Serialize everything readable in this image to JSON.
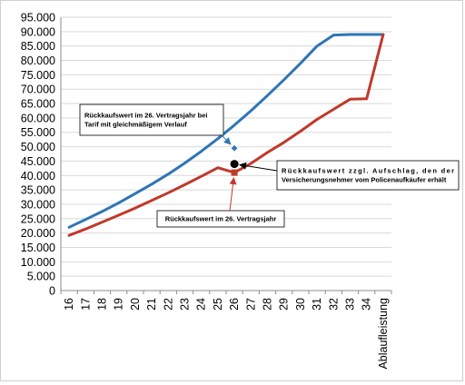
{
  "chart_data": {
    "type": "line",
    "categories": [
      "16",
      "17",
      "18",
      "19",
      "20",
      "21",
      "22",
      "23",
      "24",
      "25",
      "26",
      "27",
      "28",
      "29",
      "30",
      "31",
      "32",
      "33",
      "34",
      "Ablaufleistung"
    ],
    "yticks": [
      "0",
      "5.000",
      "10.000",
      "15.000",
      "20.000",
      "25.000",
      "30.000",
      "35.000",
      "40.000",
      "45.000",
      "50.000",
      "55.000",
      "60.000",
      "65.000",
      "70.000",
      "75.000",
      "80.000",
      "85.000",
      "90.000",
      "95.000"
    ],
    "ylim": [
      0,
      95000
    ],
    "grid": "horizontal",
    "legend": "none",
    "series": [
      {
        "color": "#2e75b6",
        "values": [
          22000,
          24700,
          27500,
          30500,
          33700,
          37000,
          40500,
          44300,
          48400,
          52800,
          57500,
          62500,
          67800,
          73300,
          79000,
          85000,
          88800,
          89000,
          89000,
          89000
        ]
      },
      {
        "color": "#c0392b",
        "values": [
          19200,
          21400,
          23800,
          26200,
          28700,
          31300,
          34000,
          36800,
          39700,
          42700,
          41000,
          44200,
          48000,
          51500,
          55400,
          59500,
          63000,
          66500,
          66700,
          89000
        ]
      }
    ],
    "markers": [
      {
        "category": "26",
        "value": 49500,
        "color": "#2e75b6",
        "shape": "diamond"
      },
      {
        "category": "26",
        "value": 41000,
        "color": "#c0392b",
        "shape": "square"
      },
      {
        "category": "26",
        "value": 44000,
        "color": "#000000",
        "shape": "circle"
      }
    ],
    "annotations": [
      {
        "lines": [
          "Rückkaufswert im 26. Vertragsjahr bei",
          "Tarif mit gleichmäßigem Verlauf"
        ]
      },
      {
        "lines": [
          "Rückkaufswert zzgl. Aufschlag, den der",
          "Versicherungsnehmer vom Policenaufkäufer erhält"
        ]
      },
      {
        "lines": [
          "Rückkaufswert im 26. Vertragsjahr"
        ]
      }
    ]
  }
}
